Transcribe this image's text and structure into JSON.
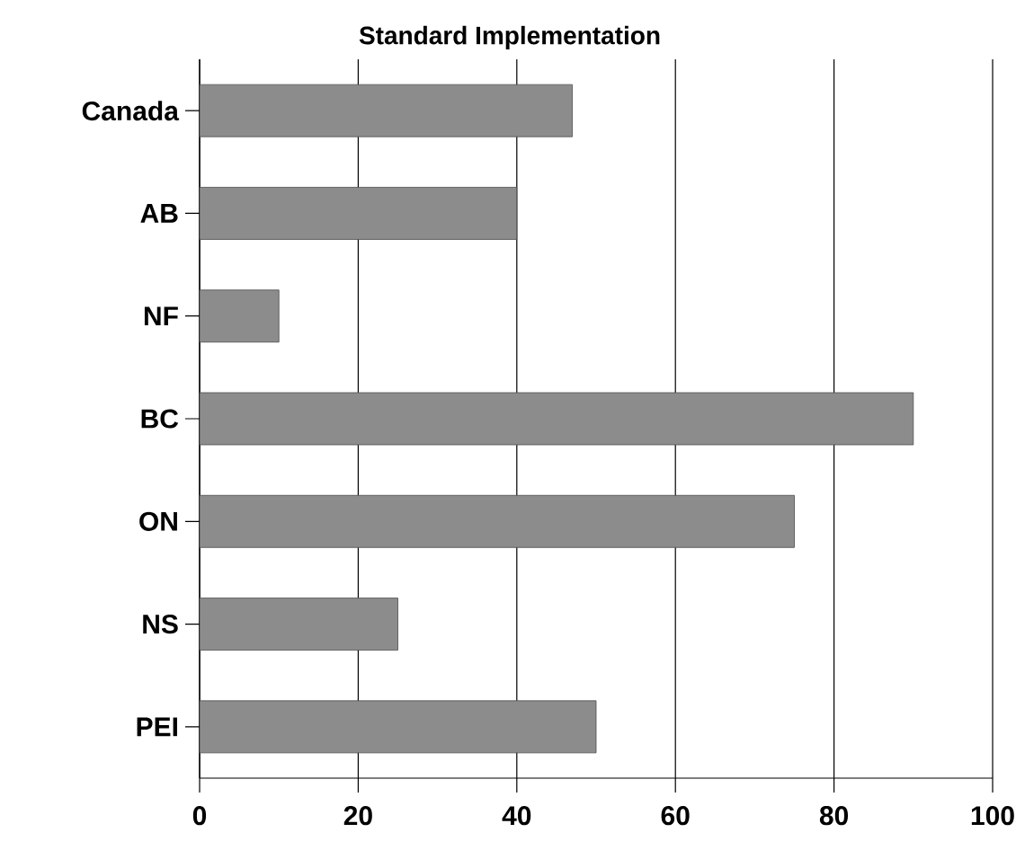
{
  "chart_data": {
    "type": "bar",
    "orientation": "horizontal",
    "title": "Standard Implementation",
    "categories": [
      "Canada",
      "AB",
      "NF",
      "BC",
      "ON",
      "NS",
      "PEI"
    ],
    "values": [
      47,
      40,
      10,
      90,
      75,
      25,
      50
    ],
    "color": "#8c8c8c",
    "xlim": [
      0,
      100
    ],
    "xticks": [
      0,
      20,
      40,
      60,
      80,
      100
    ],
    "grid": "x"
  }
}
